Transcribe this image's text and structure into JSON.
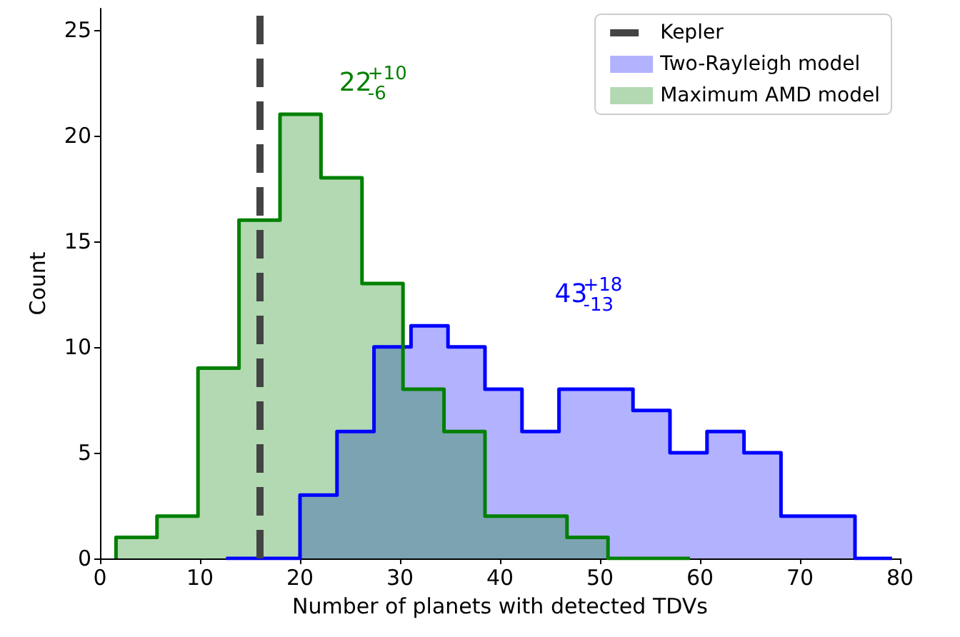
{
  "chart_data": {
    "type": "step",
    "xlabel": "Number of planets with detected TDVs",
    "ylabel": "Count",
    "xlim": [
      0,
      80
    ],
    "xticks": [
      0,
      10,
      20,
      30,
      40,
      50,
      60,
      70,
      80
    ],
    "ylim": [
      0,
      26
    ],
    "yticks": [
      0,
      5,
      10,
      15,
      20,
      25
    ],
    "grid": false,
    "legend": "top right",
    "marker": "none",
    "series": [
      {
        "name": "Two-Rayleigh model",
        "color": "#0000ff",
        "x": [
          12.6,
          12.6,
          16.3,
          20.0,
          23.7,
          27.4,
          31.1,
          34.8,
          38.5,
          42.2,
          45.9,
          49.6,
          53.3,
          57.0,
          60.7,
          64.4,
          68.1,
          71.8,
          75.5,
          79.2
        ],
        "values": [
          0,
          0,
          0,
          3,
          6,
          10,
          11,
          10,
          8,
          6,
          8,
          8,
          7,
          5,
          6,
          5,
          2,
          2,
          0,
          0
        ]
      },
      {
        "name": "Maximum AMD model",
        "color": "#008000",
        "x": [
          1.6,
          1.6,
          5.7,
          9.8,
          13.9,
          18.0,
          22.1,
          26.2,
          30.3,
          34.4,
          38.5,
          42.6,
          46.7,
          50.8,
          54.9,
          59.0
        ],
        "values": [
          0,
          1,
          2,
          9,
          16,
          21,
          18,
          13,
          8,
          6,
          2,
          2,
          1,
          0,
          0,
          0
        ]
      },
      {
        "name": "Kepler",
        "type": "line",
        "color": "#444444",
        "line_style": "dashed",
        "x": [
          16,
          16
        ],
        "values": [
          0,
          26
        ]
      }
    ],
    "annotations": [
      "43$^{+18}$$_{-13}$",
      "22$^{+10}$$_{-6}$"
    ]
  }
}
